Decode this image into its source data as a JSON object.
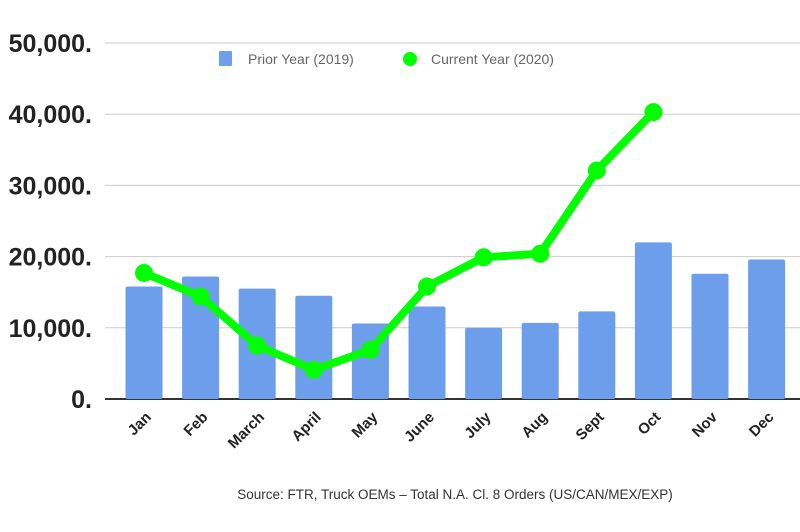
{
  "chart_data": {
    "type": "bar+line",
    "categories": [
      "Jan",
      "Feb",
      "March",
      "April",
      "May",
      "June",
      "July",
      "Aug",
      "Sept",
      "Oct",
      "Nov",
      "Dec"
    ],
    "series": [
      {
        "name": "Prior Year (2019)",
        "type": "bar",
        "color": "#6d9eeb",
        "values": [
          15800,
          17200,
          15500,
          14500,
          10600,
          13000,
          10000,
          10700,
          12300,
          22000,
          17600,
          19600
        ]
      },
      {
        "name": "Current Year (2020)",
        "type": "line",
        "color": "#00ff00",
        "values": [
          17700,
          14400,
          7500,
          4100,
          6900,
          15800,
          19900,
          20400,
          32100,
          40300,
          null,
          null
        ]
      }
    ],
    "yticks": [
      0,
      10000,
      20000,
      30000,
      40000,
      50000
    ],
    "ytick_labels": [
      "0.",
      "10,000.",
      "20,000.",
      "30,000.",
      "40,000.",
      "50,000."
    ],
    "ylim": [
      0,
      50000
    ],
    "grid": true,
    "legend_position": "top",
    "source": "Source: FTR, Truck OEMs – Total N.A. Cl. 8 Orders (US/CAN/MEX/EXP)"
  }
}
